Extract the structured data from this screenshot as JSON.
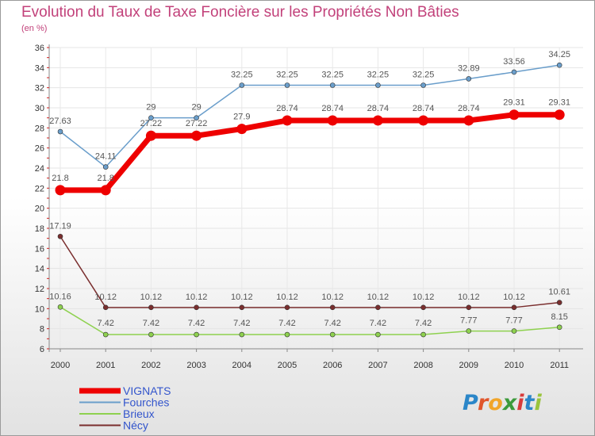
{
  "chart_data": {
    "type": "line",
    "title": "Evolution du Taux de Taxe Foncière sur les Propriétés Non Bâties",
    "ylabel": "(en %)",
    "ylim": [
      6,
      36
    ],
    "yticks": [
      "6",
      "8",
      "10",
      "12",
      "14",
      "16",
      "18",
      "20",
      "22",
      "24",
      "26",
      "28",
      "30",
      "32",
      "34",
      "36"
    ],
    "categories": [
      "2000",
      "2001",
      "2002",
      "2003",
      "2004",
      "2005",
      "2006",
      "2007",
      "2008",
      "2009",
      "2010",
      "2011"
    ],
    "series": [
      {
        "name": "Fourches",
        "color": "#6a9ecb",
        "values": [
          27.63,
          24.11,
          29,
          29,
          32.25,
          32.25,
          32.25,
          32.25,
          32.25,
          32.89,
          33.56,
          34.25
        ],
        "labels": [
          "27.63",
          "24.11",
          "29",
          "29",
          "32.25",
          "32.25",
          "32.25",
          "32.25",
          "32.25",
          "32.89",
          "33.56",
          "34.25"
        ]
      },
      {
        "name": "VIGNATS",
        "color": "#ee0000",
        "values": [
          21.8,
          21.8,
          27.22,
          27.22,
          27.9,
          28.74,
          28.74,
          28.74,
          28.74,
          28.74,
          29.31,
          29.31
        ],
        "labels": [
          "21.8",
          "21.8",
          "27.22",
          "27.22",
          "27.9",
          "28.74",
          "28.74",
          "28.74",
          "28.74",
          "28.74",
          "29.31",
          "29.31"
        ]
      },
      {
        "name": "Nécy",
        "color": "#7a2e2e",
        "values": [
          17.19,
          10.12,
          10.12,
          10.12,
          10.12,
          10.12,
          10.12,
          10.12,
          10.12,
          10.12,
          10.12,
          10.61
        ],
        "labels": [
          "17.19",
          "10.12",
          "10.12",
          "10.12",
          "10.12",
          "10.12",
          "10.12",
          "10.12",
          "10.12",
          "10.12",
          "10.12",
          "10.61"
        ]
      },
      {
        "name": "Brieux",
        "color": "#8ed14f",
        "values": [
          10.16,
          7.42,
          7.42,
          7.42,
          7.42,
          7.42,
          7.42,
          7.42,
          7.42,
          7.77,
          7.77,
          8.15
        ],
        "labels": [
          "10.16",
          "7.42",
          "7.42",
          "7.42",
          "7.42",
          "7.42",
          "7.42",
          "7.42",
          "7.42",
          "7.77",
          "7.77",
          "8.15"
        ]
      }
    ],
    "legend": [
      {
        "name": "VIGNATS",
        "color": "#ee0000",
        "text_color": "#3355cc"
      },
      {
        "name": "Fourches",
        "color": "#6a9ecb",
        "text_color": "#3355cc"
      },
      {
        "name": "Brieux",
        "color": "#8ed14f",
        "text_color": "#3355cc"
      },
      {
        "name": "Nécy",
        "color": "#7a2e2e",
        "text_color": "#3355cc"
      }
    ]
  },
  "logo": {
    "text": "Proxiti"
  }
}
